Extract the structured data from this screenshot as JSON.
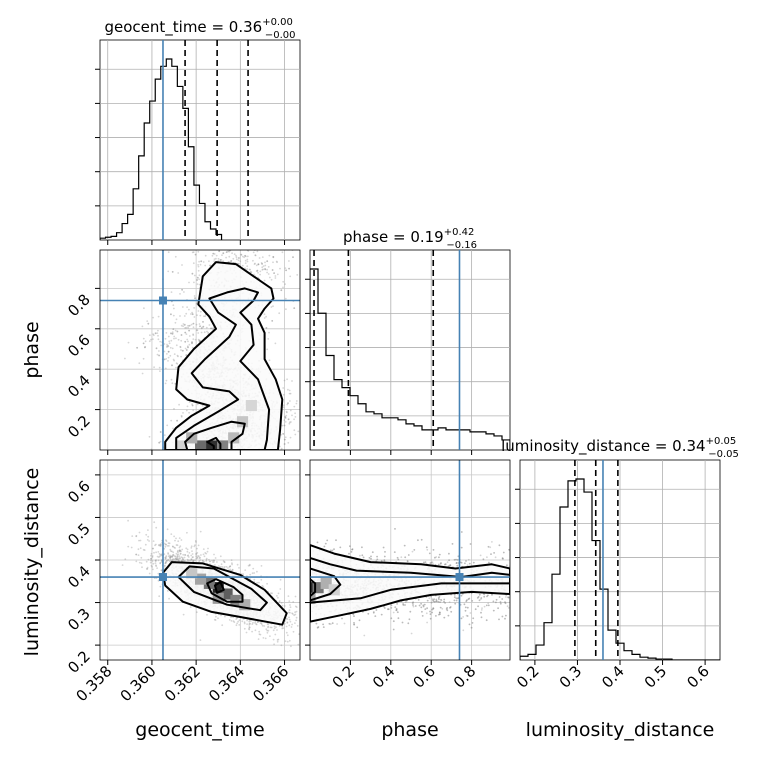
{
  "chart_data": {
    "type": "corner",
    "parameters": [
      "geocent_time",
      "phase",
      "luminosity_distance"
    ],
    "axis_labels": {
      "geocent_time": "geocent_time",
      "phase": "phase",
      "luminosity_distance": "luminosity_distance"
    },
    "ranges": {
      "geocent_time": [
        0.35765,
        0.3667
      ],
      "phase": [
        0.0,
        0.99
      ],
      "luminosity_distance": [
        0.165,
        0.635
      ]
    },
    "ticks": {
      "geocent_time": [
        "0.358",
        "0.360",
        "0.362",
        "0.364",
        "0.366"
      ],
      "phase": [
        "0.2",
        "0.4",
        "0.6",
        "0.8"
      ],
      "luminosity_distance_x": [
        "0.2",
        "0.3",
        "0.4",
        "0.5",
        "0.6"
      ],
      "luminosity_distance_y": [
        "0.2",
        "0.3",
        "0.4",
        "0.5",
        "0.6"
      ]
    },
    "titles": [
      {
        "name": "geocent_time",
        "value": "0.36",
        "plus": "+0.00",
        "minus": "−0.00"
      },
      {
        "name": "phase",
        "value": "0.19",
        "plus": "+0.42",
        "minus": "−0.16"
      },
      {
        "name": "luminosity_distance",
        "value": "0.34",
        "plus": "+0.05",
        "minus": "−0.05"
      }
    ],
    "truths": {
      "geocent_time": 0.3605,
      "phase": 0.74,
      "luminosity_distance": 0.36
    },
    "quantiles": {
      "geocent_time": [
        0.3615,
        0.36295,
        0.36435
      ],
      "phase": [
        0.02,
        0.19,
        0.61
      ],
      "luminosity_distance": [
        0.294,
        0.343,
        0.395
      ]
    },
    "histograms": {
      "geocent_time": {
        "bin_start": 0.35765,
        "bin_width": 0.00025,
        "counts": [
          0.01,
          0.015,
          0.02,
          0.04,
          0.09,
          0.14,
          0.28,
          0.46,
          0.64,
          0.76,
          0.88,
          0.95,
          0.99,
          0.95,
          0.84,
          0.72,
          0.51,
          0.3,
          0.2,
          0.1,
          0.06,
          0.03
        ]
      },
      "phase": {
        "bin_start": 0.0,
        "bin_width": 0.0396,
        "counts": [
          0.9,
          0.68,
          0.47,
          0.35,
          0.31,
          0.27,
          0.23,
          0.19,
          0.18,
          0.16,
          0.16,
          0.15,
          0.13,
          0.12,
          0.1,
          0.1,
          0.11,
          0.1,
          0.1,
          0.1,
          0.09,
          0.09,
          0.08,
          0.07,
          0.05
        ]
      },
      "luminosity_distance": {
        "bin_start": 0.165,
        "bin_width": 0.0188,
        "counts": [
          0.02,
          0.03,
          0.08,
          0.2,
          0.46,
          0.82,
          0.96,
          0.97,
          0.9,
          0.64,
          0.38,
          0.16,
          0.09,
          0.05,
          0.03,
          0.015,
          0.01,
          0.005,
          0.005,
          0.0,
          0.0,
          0.0,
          0.0,
          0.0,
          0.0
        ]
      }
    },
    "contours_2d": {
      "phase_vs_geocent_time": [
        [
          [
            0.3628,
            0.0
          ],
          [
            0.3628,
            0.02
          ],
          [
            0.3625,
            0.04
          ],
          [
            0.3629,
            0.06
          ],
          [
            0.3631,
            0.03
          ],
          [
            0.3631,
            0.0
          ]
        ],
        [
          [
            0.3616,
            0.0
          ],
          [
            0.3615,
            0.04
          ],
          [
            0.3619,
            0.08
          ],
          [
            0.3627,
            0.11
          ],
          [
            0.3636,
            0.14
          ],
          [
            0.3642,
            0.13
          ],
          [
            0.3641,
            0.08
          ],
          [
            0.3636,
            0.04
          ],
          [
            0.3636,
            0.0
          ]
        ],
        [
          [
            0.3611,
            0.0
          ],
          [
            0.3611,
            0.06
          ],
          [
            0.3619,
            0.12
          ],
          [
            0.363,
            0.19
          ],
          [
            0.3639,
            0.25
          ],
          [
            0.3635,
            0.29
          ],
          [
            0.3623,
            0.31
          ],
          [
            0.3618,
            0.38
          ],
          [
            0.3624,
            0.45
          ],
          [
            0.3635,
            0.56
          ],
          [
            0.3638,
            0.62
          ],
          [
            0.363,
            0.68
          ],
          [
            0.3626,
            0.75
          ],
          [
            0.3634,
            0.78
          ],
          [
            0.3642,
            0.8
          ],
          [
            0.3648,
            0.78
          ],
          [
            0.3646,
            0.74
          ],
          [
            0.364,
            0.68
          ],
          [
            0.3645,
            0.62
          ],
          [
            0.3646,
            0.52
          ],
          [
            0.364,
            0.44
          ],
          [
            0.3648,
            0.35
          ],
          [
            0.3653,
            0.2
          ],
          [
            0.3652,
            0.05
          ],
          [
            0.3651,
            0.0
          ]
        ],
        [
          [
            0.3606,
            0.0
          ],
          [
            0.3606,
            0.04
          ],
          [
            0.3611,
            0.11
          ],
          [
            0.3618,
            0.17
          ],
          [
            0.3626,
            0.22
          ],
          [
            0.3616,
            0.25
          ],
          [
            0.3611,
            0.3
          ],
          [
            0.3612,
            0.41
          ],
          [
            0.3619,
            0.5
          ],
          [
            0.3629,
            0.6
          ],
          [
            0.3626,
            0.66
          ],
          [
            0.3621,
            0.72
          ],
          [
            0.3623,
            0.86
          ],
          [
            0.3629,
            0.93
          ],
          [
            0.3638,
            0.92
          ],
          [
            0.3646,
            0.86
          ],
          [
            0.3654,
            0.8
          ],
          [
            0.3655,
            0.75
          ],
          [
            0.3651,
            0.7
          ],
          [
            0.3648,
            0.65
          ],
          [
            0.3651,
            0.58
          ],
          [
            0.3651,
            0.45
          ],
          [
            0.3656,
            0.35
          ],
          [
            0.3659,
            0.25
          ],
          [
            0.3658,
            0.1
          ],
          [
            0.3657,
            0.0
          ]
        ]
      ],
      "luminosity_distance_vs_geocent_time": [
        [
          [
            0.36295,
            0.323
          ],
          [
            0.36285,
            0.34
          ],
          [
            0.3631,
            0.348
          ],
          [
            0.36325,
            0.33
          ]
        ],
        [
          [
            0.3625,
            0.345
          ],
          [
            0.3629,
            0.355
          ],
          [
            0.3637,
            0.336
          ],
          [
            0.3641,
            0.318
          ],
          [
            0.3641,
            0.302
          ],
          [
            0.3634,
            0.302
          ],
          [
            0.3627,
            0.322
          ]
        ],
        [
          [
            0.3617,
            0.385
          ],
          [
            0.3628,
            0.38
          ],
          [
            0.3645,
            0.332
          ],
          [
            0.3652,
            0.3
          ],
          [
            0.3649,
            0.282
          ],
          [
            0.3634,
            0.295
          ],
          [
            0.3619,
            0.325
          ],
          [
            0.3612,
            0.36
          ]
        ],
        [
          [
            0.3609,
            0.395
          ],
          [
            0.3623,
            0.392
          ],
          [
            0.364,
            0.365
          ],
          [
            0.3651,
            0.33
          ],
          [
            0.3661,
            0.275
          ],
          [
            0.3659,
            0.248
          ],
          [
            0.3641,
            0.265
          ],
          [
            0.3627,
            0.278
          ],
          [
            0.3614,
            0.302
          ],
          [
            0.3606,
            0.34
          ],
          [
            0.3605,
            0.37
          ]
        ]
      ],
      "luminosity_distance_vs_phase": [
        [
          [
            0.0,
            0.355
          ],
          [
            0.025,
            0.345
          ],
          [
            0.025,
            0.325
          ],
          [
            0.0,
            0.315
          ]
        ],
        [
          [
            0.0,
            0.38
          ],
          [
            0.12,
            0.362
          ],
          [
            0.15,
            0.342
          ],
          [
            0.1,
            0.32
          ],
          [
            0.0,
            0.305
          ]
        ],
        [
          [
            0.0,
            0.405
          ],
          [
            0.1,
            0.39
          ],
          [
            0.23,
            0.375
          ],
          [
            0.5,
            0.37
          ],
          [
            0.75,
            0.36
          ],
          [
            0.9,
            0.37
          ],
          [
            0.99,
            0.365
          ],
          [
            0.99,
            0.345
          ],
          [
            0.85,
            0.345
          ],
          [
            0.65,
            0.345
          ],
          [
            0.4,
            0.33
          ],
          [
            0.25,
            0.31
          ],
          [
            0.0,
            0.3
          ]
        ],
        [
          [
            0.0,
            0.435
          ],
          [
            0.12,
            0.415
          ],
          [
            0.3,
            0.395
          ],
          [
            0.55,
            0.39
          ],
          [
            0.72,
            0.38
          ],
          [
            0.9,
            0.39
          ],
          [
            0.99,
            0.38
          ],
          [
            0.99,
            0.32
          ],
          [
            0.8,
            0.325
          ],
          [
            0.6,
            0.318
          ],
          [
            0.45,
            0.305
          ],
          [
            0.3,
            0.285
          ],
          [
            0.15,
            0.27
          ],
          [
            0.0,
            0.255
          ]
        ]
      ]
    },
    "density_cells": {
      "phase_vs_geocent_time": [
        [
          0.3627,
          0.02,
          0.9
        ],
        [
          0.3622,
          0.02,
          0.65
        ],
        [
          0.3632,
          0.02,
          0.55
        ],
        [
          0.3618,
          0.06,
          0.35
        ],
        [
          0.3637,
          0.06,
          0.3
        ],
        [
          0.3641,
          0.14,
          0.25
        ],
        [
          0.3645,
          0.22,
          0.18
        ],
        [
          0.3613,
          0.02,
          0.2
        ]
      ],
      "luminosity_distance_vs_geocent_time": [
        [
          0.363,
          0.335,
          0.95
        ],
        [
          0.3634,
          0.32,
          0.7
        ],
        [
          0.3626,
          0.345,
          0.6
        ],
        [
          0.3638,
          0.305,
          0.55
        ],
        [
          0.3622,
          0.355,
          0.4
        ],
        [
          0.3642,
          0.295,
          0.35
        ],
        [
          0.363,
          0.31,
          0.45
        ],
        [
          0.3618,
          0.37,
          0.25
        ]
      ],
      "luminosity_distance_vs_phase": [
        [
          0.0,
          0.335,
          0.95
        ],
        [
          0.04,
          0.335,
          0.6
        ],
        [
          0.08,
          0.345,
          0.35
        ],
        [
          0.0,
          0.31,
          0.4
        ],
        [
          0.12,
          0.33,
          0.2
        ]
      ]
    },
    "grid": true
  }
}
